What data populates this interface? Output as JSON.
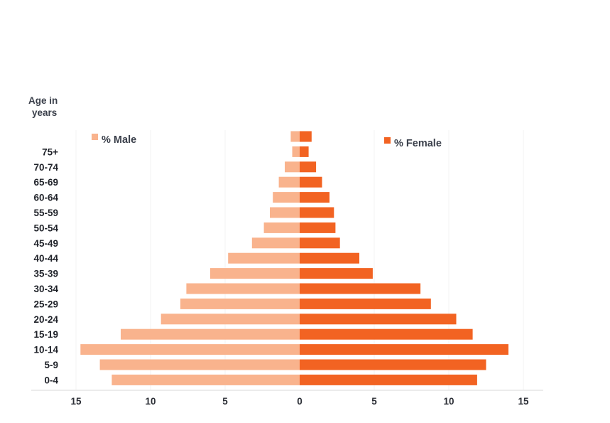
{
  "chart_data": {
    "type": "bar",
    "orientation": "horizontal",
    "layout": "population-pyramid",
    "ylabel_line1": "Age in",
    "ylabel_line2": "years",
    "categories": [
      "0-4",
      "5-9",
      "10-14",
      "15-19",
      "20-24",
      "25-29",
      "30-34",
      "35-39",
      "40-44",
      "45-49",
      "50-54",
      "55-59",
      "60-64",
      "65-69",
      "70-74",
      "75+",
      ""
    ],
    "series": [
      {
        "name": "% Male",
        "color": "#f9b38d",
        "side": "left",
        "values": [
          12.6,
          13.4,
          14.7,
          12.0,
          9.3,
          8.0,
          7.6,
          6.0,
          4.8,
          3.2,
          2.4,
          2.0,
          1.8,
          1.4,
          1.0,
          0.5,
          0.6
        ]
      },
      {
        "name": "% Female",
        "color": "#f26322",
        "side": "right",
        "values": [
          11.9,
          12.5,
          14.0,
          11.6,
          10.5,
          8.8,
          8.1,
          4.9,
          4.0,
          2.7,
          2.4,
          2.3,
          2.0,
          1.5,
          1.1,
          0.6,
          0.8
        ]
      }
    ],
    "xlim": [
      -15,
      15
    ],
    "xticks": [
      -15,
      -10,
      -5,
      0,
      5,
      10,
      15
    ],
    "xtick_labels": [
      "15",
      "10",
      "5",
      "0",
      "5",
      "10",
      "15"
    ],
    "grid": "vertical",
    "legend": [
      "top-left",
      "top-right"
    ]
  }
}
